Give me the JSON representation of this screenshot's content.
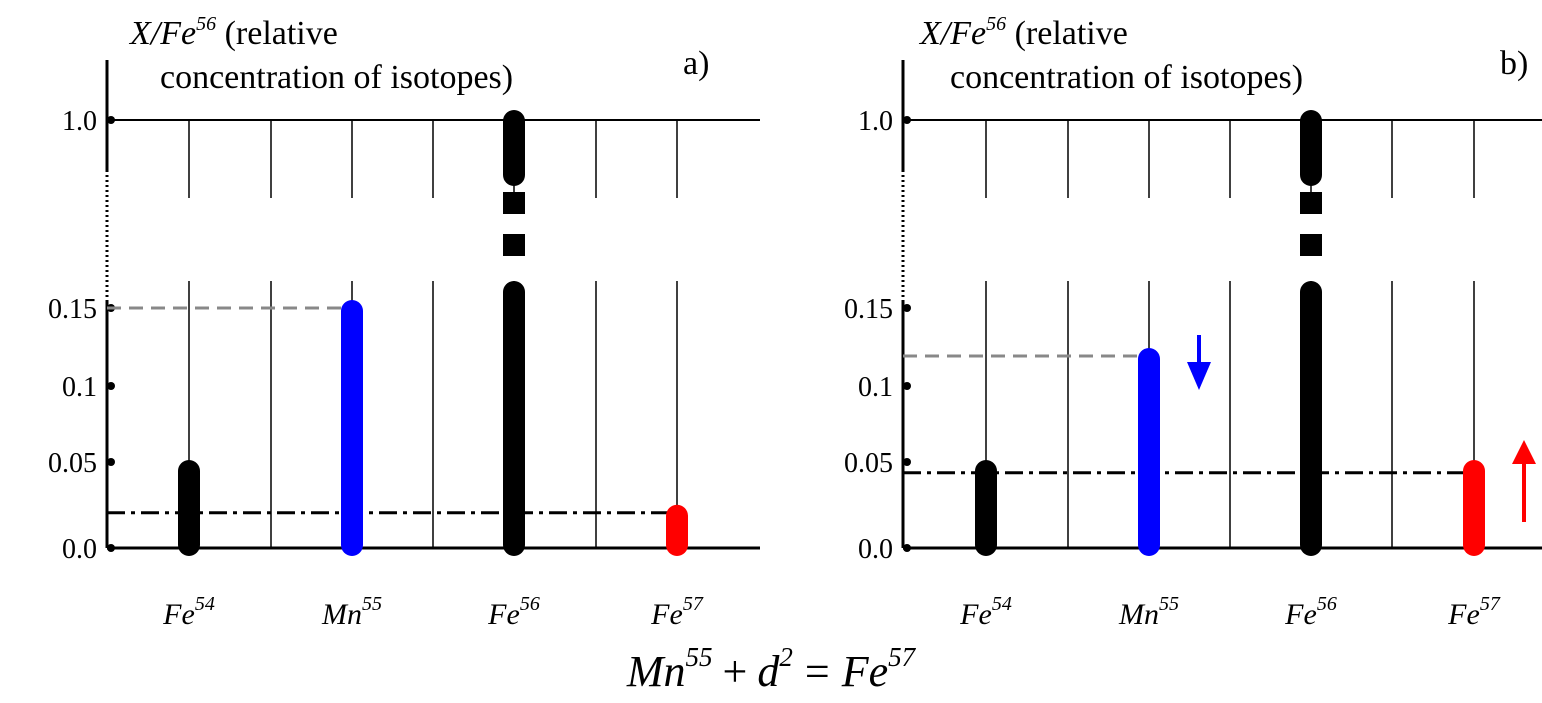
{
  "chart_data": [
    {
      "type": "bar",
      "panel_label": "a)",
      "ylabel": {
        "base": "X/Fe",
        "sup": "56",
        "rest": " (relative",
        "line2": "concentration of isotopes)"
      },
      "yticks": [
        "0.0",
        "0.05",
        "0.1",
        "0.15",
        "1.0"
      ],
      "categories": [
        {
          "base": "Fe",
          "sup": "54"
        },
        {
          "base": "Mn",
          "sup": "55"
        },
        {
          "base": "Fe",
          "sup": "56"
        },
        {
          "base": "Fe",
          "sup": "57"
        }
      ],
      "values": [
        0.05,
        0.15,
        1.0,
        0.022
      ],
      "bar_colors": [
        "#000000",
        "#0000ff",
        "#000000",
        "#ff0000"
      ],
      "axis_break_between": [
        0.15,
        1.0
      ],
      "reference_lines": [
        {
          "style": "dashed",
          "color": "#888888",
          "value": 0.15,
          "to_category": 1
        },
        {
          "style": "dash-dot",
          "color": "#000000",
          "value": 0.022,
          "to_category": 3
        }
      ],
      "arrows": []
    },
    {
      "type": "bar",
      "panel_label": "b)",
      "ylabel": {
        "base": "X/Fe",
        "sup": "56",
        "rest": " (relative",
        "line2": "concentration of isotopes)"
      },
      "yticks": [
        "0.0",
        "0.05",
        "0.1",
        "0.15",
        "1.0"
      ],
      "categories": [
        {
          "base": "Fe",
          "sup": "54"
        },
        {
          "base": "Mn",
          "sup": "55"
        },
        {
          "base": "Fe",
          "sup": "56"
        },
        {
          "base": "Fe",
          "sup": "57"
        }
      ],
      "values": [
        0.05,
        0.12,
        1.0,
        0.05
      ],
      "bar_colors": [
        "#000000",
        "#0000ff",
        "#000000",
        "#ff0000"
      ],
      "axis_break_between": [
        0.15,
        1.0
      ],
      "reference_lines": [
        {
          "style": "dashed",
          "color": "#888888",
          "value": 0.12,
          "to_category": 1
        },
        {
          "style": "dash-dot",
          "color": "#000000",
          "value": 0.047,
          "to_category": 3
        }
      ],
      "arrows": [
        {
          "category": 1,
          "direction": "down",
          "color": "#0000ff"
        },
        {
          "category": 3,
          "direction": "up",
          "color": "#ff0000"
        }
      ]
    }
  ],
  "equation": {
    "lhs": "Mn",
    "lhs_sup": "55",
    "plus": "+",
    "term": "d",
    "term_sup": "2",
    "equals": "=",
    "rhs": "Fe",
    "rhs_sup": "57"
  }
}
